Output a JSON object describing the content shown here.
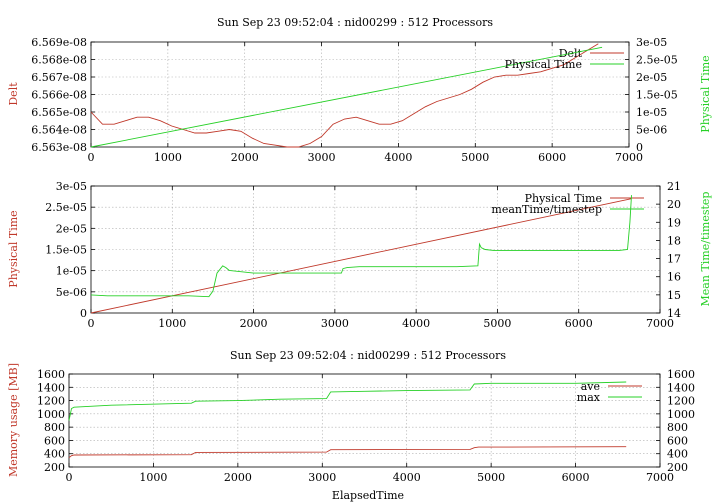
{
  "colors": {
    "red": "#c0392b",
    "green": "#27d027",
    "grid": "#b0b0b0"
  },
  "chart_data": [
    {
      "type": "line",
      "title": "Sun Sep 23 09:52:04 : nid00299 : 512 Processors",
      "ylabel": "Delt",
      "y2label": "Physical Time",
      "xlim": [
        0,
        7000
      ],
      "ylim": [
        6.563e-08,
        6.569e-08
      ],
      "y2lim": [
        0,
        3e-05
      ],
      "xticks": [
        "0",
        "1000",
        "2000",
        "3000",
        "4000",
        "5000",
        "6000",
        "7000"
      ],
      "yticks": [
        "6.563e-08",
        "6.564e-08",
        "6.565e-08",
        "6.566e-08",
        "6.567e-08",
        "6.568e-08",
        "6.569e-08"
      ],
      "y2ticks": [
        "0",
        "5e-06",
        "1e-05",
        "1.5e-05",
        "2e-05",
        "2.5e-05",
        "3e-05"
      ],
      "grid": true,
      "legend_position": "top-right",
      "series": [
        {
          "name": "Delt",
          "axis": "y",
          "color": "red",
          "x": [
            0,
            150,
            300,
            450,
            600,
            750,
            900,
            1050,
            1200,
            1350,
            1500,
            1650,
            1800,
            1950,
            2100,
            2250,
            2400,
            2550,
            2700,
            2850,
            3000,
            3150,
            3300,
            3450,
            3600,
            3750,
            3900,
            4050,
            4200,
            4350,
            4500,
            4650,
            4800,
            4950,
            5100,
            5250,
            5400,
            5550,
            5700,
            5850,
            6000,
            6150,
            6300,
            6450,
            6600
          ],
          "y": [
            6.565e-08,
            6.5643e-08,
            6.5643e-08,
            6.5645e-08,
            6.5647e-08,
            6.5647e-08,
            6.5645e-08,
            6.5642e-08,
            6.564e-08,
            6.5638e-08,
            6.5638e-08,
            6.5639e-08,
            6.564e-08,
            6.5639e-08,
            6.5635e-08,
            6.5632e-08,
            6.5631e-08,
            6.563e-08,
            6.563e-08,
            6.5632e-08,
            6.5636e-08,
            6.5643e-08,
            6.5646e-08,
            6.5647e-08,
            6.5645e-08,
            6.5643e-08,
            6.5643e-08,
            6.5645e-08,
            6.5649e-08,
            6.5653e-08,
            6.5656e-08,
            6.5658e-08,
            6.566e-08,
            6.5663e-08,
            6.5667e-08,
            6.567e-08,
            6.5671e-08,
            6.5671e-08,
            6.5672e-08,
            6.5673e-08,
            6.5675e-08,
            6.5677e-08,
            6.5681e-08,
            6.5685e-08,
            6.5689e-08
          ]
        },
        {
          "name": "Physical Time",
          "axis": "y2",
          "color": "green",
          "x": [
            0,
            6650
          ],
          "y": [
            0,
            2.85e-05
          ]
        }
      ]
    },
    {
      "type": "line",
      "title": "",
      "ylabel": "Physical Time",
      "y2label": "Mean Time/timestep",
      "xlim": [
        0,
        7000
      ],
      "ylim": [
        0,
        3e-05
      ],
      "y2lim": [
        14,
        21
      ],
      "xticks": [
        "0",
        "1000",
        "2000",
        "3000",
        "4000",
        "5000",
        "6000",
        "7000"
      ],
      "yticks": [
        "0",
        "5e-06",
        "1e-05",
        "1.5e-05",
        "2e-05",
        "2.5e-05",
        "3e-05"
      ],
      "y2ticks": [
        "14",
        "15",
        "16",
        "17",
        "18",
        "19",
        "20",
        "21"
      ],
      "grid": true,
      "legend_position": "top-right",
      "series": [
        {
          "name": "Physical Time",
          "axis": "y",
          "color": "red",
          "x": [
            0,
            6650
          ],
          "y": [
            0,
            2.7e-05
          ]
        },
        {
          "name": "meanTime/timestep",
          "axis": "y2",
          "color": "green",
          "x": [
            0,
            200,
            400,
            800,
            1200,
            1450,
            1500,
            1550,
            1620,
            1660,
            1700,
            1800,
            2000,
            2500,
            3000,
            3080,
            3100,
            3150,
            3300,
            3500,
            4000,
            4500,
            4760,
            4780,
            4800,
            4850,
            4950,
            5200,
            5600,
            6000,
            6500,
            6600,
            6630,
            6650
          ],
          "y": [
            15.0,
            14.95,
            14.95,
            14.95,
            14.95,
            14.9,
            15.2,
            16.2,
            16.6,
            16.5,
            16.35,
            16.3,
            16.2,
            16.2,
            16.2,
            16.2,
            16.45,
            16.5,
            16.55,
            16.55,
            16.55,
            16.55,
            16.6,
            17.8,
            17.6,
            17.5,
            17.45,
            17.45,
            17.45,
            17.45,
            17.45,
            17.5,
            19.0,
            20.5
          ]
        }
      ]
    },
    {
      "type": "line",
      "title": "Sun Sep 23 09:52:04 : nid00299 : 512 Processors",
      "xlabel": "ElapsedTime",
      "ylabel": "Memory usage [MB]",
      "xlim": [
        0,
        7000
      ],
      "ylim": [
        200,
        1600
      ],
      "y2lim": [
        200,
        1600
      ],
      "xticks": [
        "0",
        "1000",
        "2000",
        "3000",
        "4000",
        "5000",
        "6000",
        "7000"
      ],
      "yticks": [
        "200",
        "400",
        "600",
        "800",
        "1000",
        "1200",
        "1400",
        "1600"
      ],
      "y2ticks": [
        "200",
        "400",
        "600",
        "800",
        "1000",
        "1200",
        "1400",
        "1600"
      ],
      "grid": true,
      "legend_position": "top-right",
      "series": [
        {
          "name": "ave",
          "axis": "y",
          "color": "red",
          "x": [
            0,
            30,
            60,
            1450,
            1500,
            3050,
            3100,
            4750,
            4800,
            4850,
            6600
          ],
          "y": [
            340,
            370,
            380,
            385,
            420,
            425,
            460,
            465,
            490,
            500,
            505
          ]
        },
        {
          "name": "max",
          "axis": "y",
          "color": "green",
          "x": [
            0,
            30,
            60,
            500,
            1450,
            1500,
            2000,
            2500,
            3050,
            3100,
            3500,
            4000,
            4750,
            4800,
            5000,
            6000,
            6600
          ],
          "y": [
            900,
            1080,
            1100,
            1130,
            1160,
            1190,
            1200,
            1220,
            1230,
            1330,
            1340,
            1350,
            1360,
            1450,
            1460,
            1460,
            1480
          ]
        }
      ]
    }
  ]
}
